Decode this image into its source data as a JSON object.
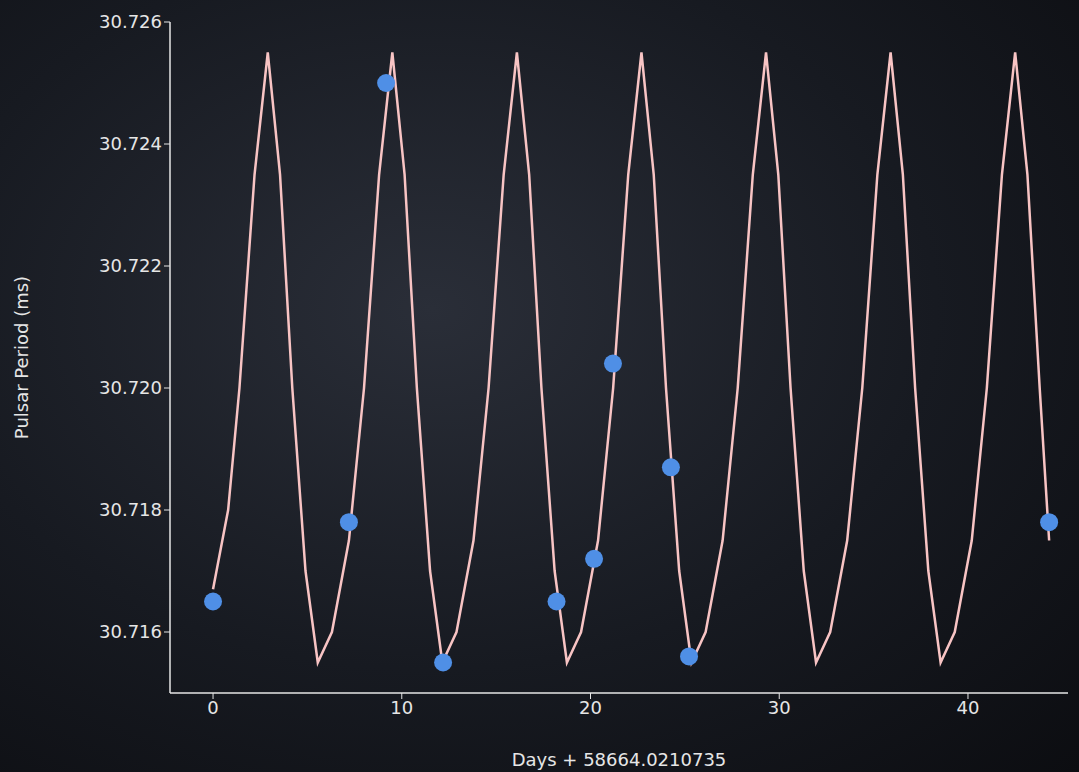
{
  "chart_data": {
    "type": "line",
    "x_label": "Days + 58664.0210735",
    "y_label": "Pulsar Period (ms)",
    "xlim": [
      -2.28,
      45.3
    ],
    "xticks": [
      0,
      10,
      20,
      30,
      40
    ],
    "ylim": [
      30.715,
      30.726
    ],
    "yticks": [
      30.716,
      30.718,
      {
        "value": 30.72,
        "label": "30.720"
      },
      30.722,
      30.724,
      30.726
    ],
    "grid": false,
    "series": [
      {
        "type": "line",
        "color": "#f8c4c4",
        "line_style": "solid",
        "x": [
          0,
          0.8,
          1.4,
          2.2,
          2.9,
          3.55,
          4.2,
          4.9,
          5.55,
          6.3,
          7.2,
          8.0,
          8.8,
          9.5,
          10.15,
          10.8,
          11.5,
          12.15,
          12.9,
          13.8,
          14.6,
          15.4,
          16.1,
          16.75,
          17.4,
          18.1,
          18.75,
          19.5,
          20.4,
          21.2,
          22.0,
          22.7,
          23.35,
          24.0,
          24.7,
          25.35,
          26.1,
          27.0,
          27.8,
          28.6,
          29.3,
          29.95,
          30.6,
          31.3,
          31.95,
          32.7,
          33.6,
          34.4,
          35.2,
          35.9,
          36.55,
          37.2,
          37.9,
          38.55,
          39.3,
          40.2,
          41.0,
          41.8,
          42.5,
          43.15,
          43.8,
          44.3
        ],
        "values": [
          30.7167,
          30.718,
          30.72,
          30.7235,
          30.7255,
          30.7235,
          30.72,
          30.717,
          30.7155,
          30.716,
          30.7175,
          30.72,
          30.7235,
          30.7255,
          30.7235,
          30.72,
          30.717,
          30.7155,
          30.716,
          30.7175,
          30.72,
          30.7235,
          30.7255,
          30.7235,
          30.72,
          30.717,
          30.7155,
          30.716,
          30.7175,
          30.72,
          30.7235,
          30.7255,
          30.7235,
          30.72,
          30.717,
          30.7155,
          30.716,
          30.7175,
          30.72,
          30.7235,
          30.7255,
          30.7235,
          30.72,
          30.717,
          30.7155,
          30.716,
          30.7175,
          30.72,
          30.7235,
          30.7255,
          30.7235,
          30.72,
          30.717,
          30.7155,
          30.716,
          30.7175,
          30.72,
          30.7235,
          30.7255,
          30.7235,
          30.72,
          30.7175
        ]
      },
      {
        "type": "scatter",
        "color": "#4f8fe6",
        "marker": "circle",
        "x": [
          0,
          7.2,
          9.17,
          12.19,
          18.2,
          20.19,
          21.19,
          24.26,
          25.22,
          44.3
        ],
        "values": [
          30.7165,
          30.7178,
          30.725,
          30.7155,
          30.7165,
          30.7172,
          30.7204,
          30.7187,
          30.7156,
          30.7178
        ]
      }
    ]
  }
}
